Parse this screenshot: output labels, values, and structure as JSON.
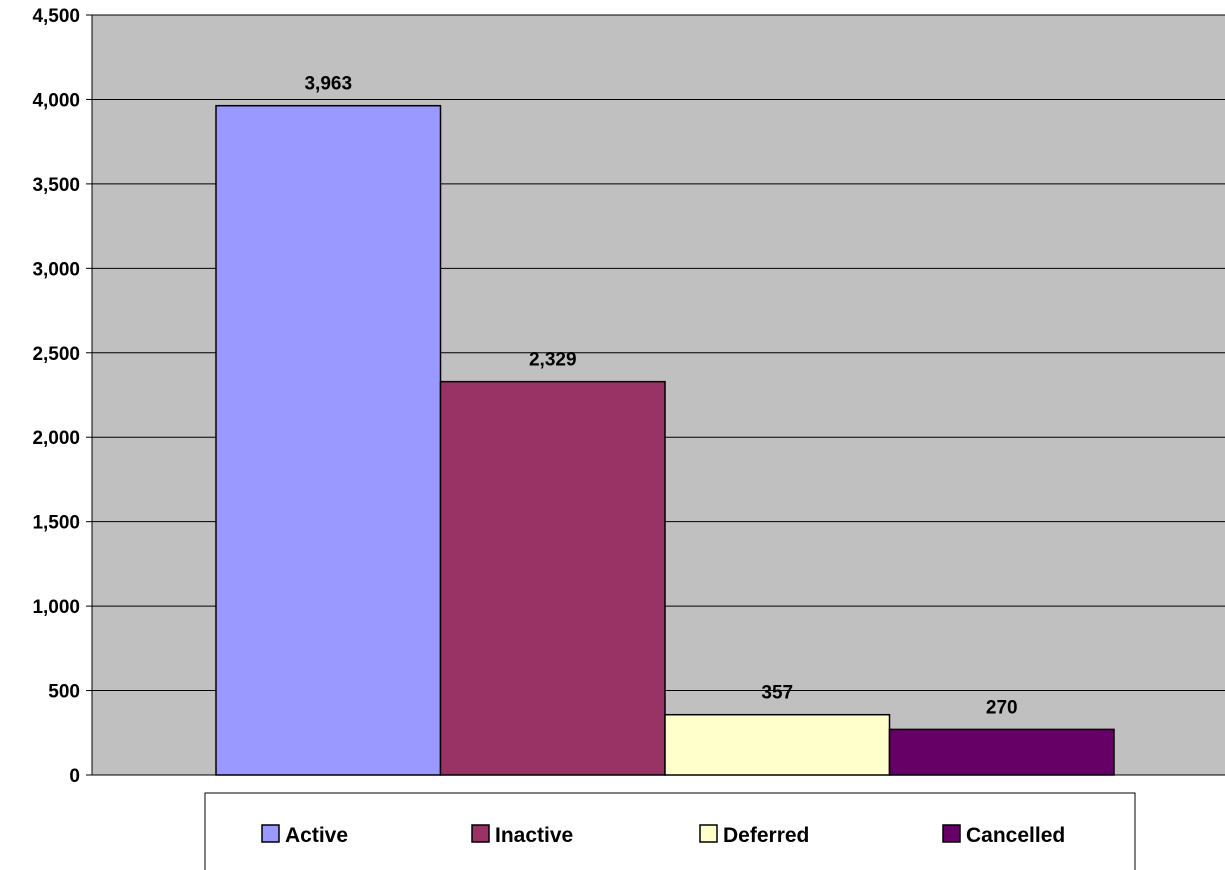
{
  "chart_data": {
    "type": "bar",
    "title": "",
    "xlabel": "",
    "ylabel": "",
    "ylim": [
      0,
      4500
    ],
    "yticks": [
      "0",
      "500",
      "1,000",
      "1,500",
      "2,000",
      "2,500",
      "3,000",
      "3,500",
      "4,000",
      "4,500"
    ],
    "grid": true,
    "legend_position": "bottom",
    "series": [
      {
        "name": "Active",
        "value": 3963,
        "label": "3,963",
        "color": "#9999ff"
      },
      {
        "name": "Inactive",
        "value": 2329,
        "label": "2,329",
        "color": "#993366"
      },
      {
        "name": "Deferred",
        "value": 357,
        "label": "357",
        "color": "#ffffcc"
      },
      {
        "name": "Cancelled",
        "value": 270,
        "label": "270",
        "color": "#660066"
      }
    ]
  }
}
